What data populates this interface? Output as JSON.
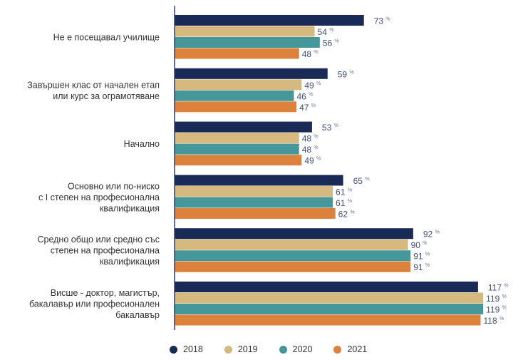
{
  "chart_data": {
    "type": "bar",
    "orientation": "horizontal",
    "title": "",
    "xlabel": "",
    "ylabel": "",
    "xlim": [
      0,
      125
    ],
    "grid": false,
    "value_suffix": "%",
    "legend_position": "bottom",
    "categories": [
      [
        "Не е посещавал училище"
      ],
      [
        "Завършен клас от начален етап",
        "или курс за ограмотяване"
      ],
      [
        "Начално"
      ],
      [
        "Основно или по-ниско",
        "с I степен на професионална",
        "квалификация"
      ],
      [
        "Средно общо или средно със",
        "степен на професионална",
        "квалификация"
      ],
      [
        "Висше - доктор, магистър,",
        "бакалавър или професионален",
        "бакалавър"
      ]
    ],
    "series": [
      {
        "name": "2018",
        "color": "#1a2a57",
        "values": [
          73,
          59,
          53,
          65,
          92,
          117
        ]
      },
      {
        "name": "2019",
        "color": "#d6b97f",
        "values": [
          54,
          49,
          48,
          61,
          90,
          119
        ]
      },
      {
        "name": "2020",
        "color": "#46979a",
        "values": [
          56,
          46,
          48,
          61,
          91,
          119
        ]
      },
      {
        "name": "2021",
        "color": "#dc823c",
        "values": [
          48,
          47,
          49,
          62,
          91,
          118
        ]
      }
    ],
    "axis_color": "#2e3f6e"
  }
}
